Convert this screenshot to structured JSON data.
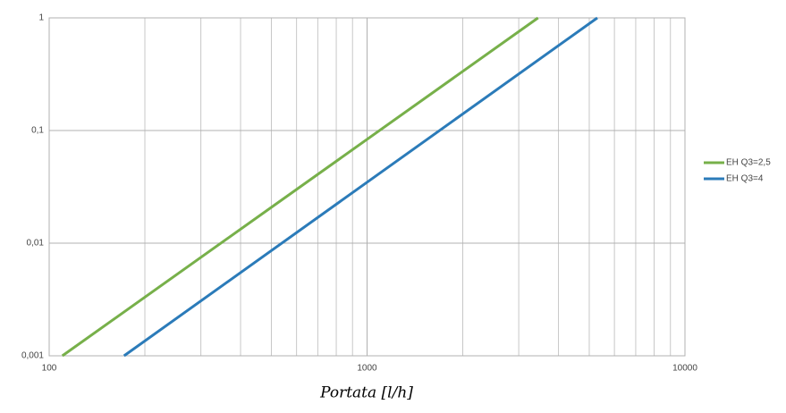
{
  "chart_data": {
    "type": "line",
    "x_label": "Portata [l/h]",
    "log_x": true,
    "log_y": true,
    "grid": true,
    "legend": "right",
    "xlim": [
      100,
      10000
    ],
    "xticks": [
      100,
      1000,
      10000
    ],
    "x_minor_gridlines": [
      200,
      300,
      400,
      500,
      600,
      700,
      800,
      900,
      2000,
      3000,
      4000,
      5000,
      6000,
      7000,
      8000,
      9000
    ],
    "ylim": [
      0.001,
      1
    ],
    "yticks": [
      {
        "value": 0.001,
        "label": "0,001"
      },
      {
        "value": 0.01,
        "label": "0,01"
      },
      {
        "value": 0.1,
        "label": "0,1"
      },
      1
    ],
    "series": [
      {
        "name": "EH Q3=2,5",
        "color": "#77b04a",
        "x": [
          110,
          3450
        ],
        "values": [
          0.001,
          1
        ]
      },
      {
        "name": "EH Q3=4",
        "color": "#2b7bb9",
        "x": [
          172,
          5300
        ],
        "values": [
          0.001,
          1
        ]
      }
    ]
  }
}
